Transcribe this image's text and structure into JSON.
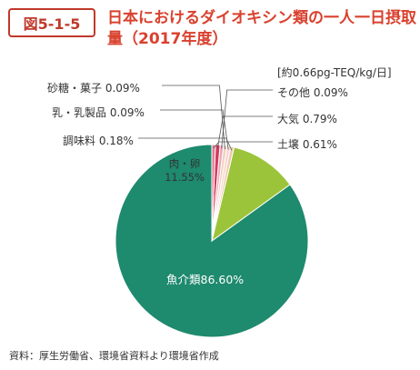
{
  "header": {
    "figure_number": "図5-1-5",
    "title": "日本におけるダイオキシン類の一人一日摂取量（2017年度）"
  },
  "chart_data": {
    "type": "pie",
    "unit": "[約0.66pg-TEQ/kg/日]",
    "slices": [
      {
        "label": "魚介類",
        "value": 86.6,
        "value_text": "86.60%",
        "color": "#1e8a6e"
      },
      {
        "label": "肉・卵",
        "value": 11.55,
        "value_text": "11.55%",
        "color": "#9cc43a"
      },
      {
        "label": "調味料",
        "value": 0.18,
        "value_text": "0.18%",
        "color": "#f1c7ad"
      },
      {
        "label": "乳・乳製品",
        "value": 0.09,
        "value_text": "0.09%",
        "color": "#f5d9cc"
      },
      {
        "label": "砂糖・菓子",
        "value": 0.09,
        "value_text": "0.09%",
        "color": "#f3d0c2"
      },
      {
        "label": "その他",
        "value": 0.09,
        "value_text": "0.09%",
        "color": "#e9a8b7"
      },
      {
        "label": "大気",
        "value": 0.79,
        "value_text": "0.79%",
        "color": "#d63a5e"
      },
      {
        "label": "土壌",
        "value": 0.61,
        "value_text": "0.61%",
        "color": "#e27a95"
      }
    ]
  },
  "labels": {
    "sugar": "砂糖・菓子 0.09%",
    "dairy": "乳・乳製品 0.09%",
    "seasoning": "調味料 0.18%",
    "meat_line1": "肉・卵",
    "meat_line2": "11.55%",
    "fish": "魚介類86.60%",
    "other": "その他 0.09%",
    "air": "大気 0.79%",
    "soil": "土壌 0.61%"
  },
  "source": "資料：厚生労働省、環境省資料より環境省作成"
}
